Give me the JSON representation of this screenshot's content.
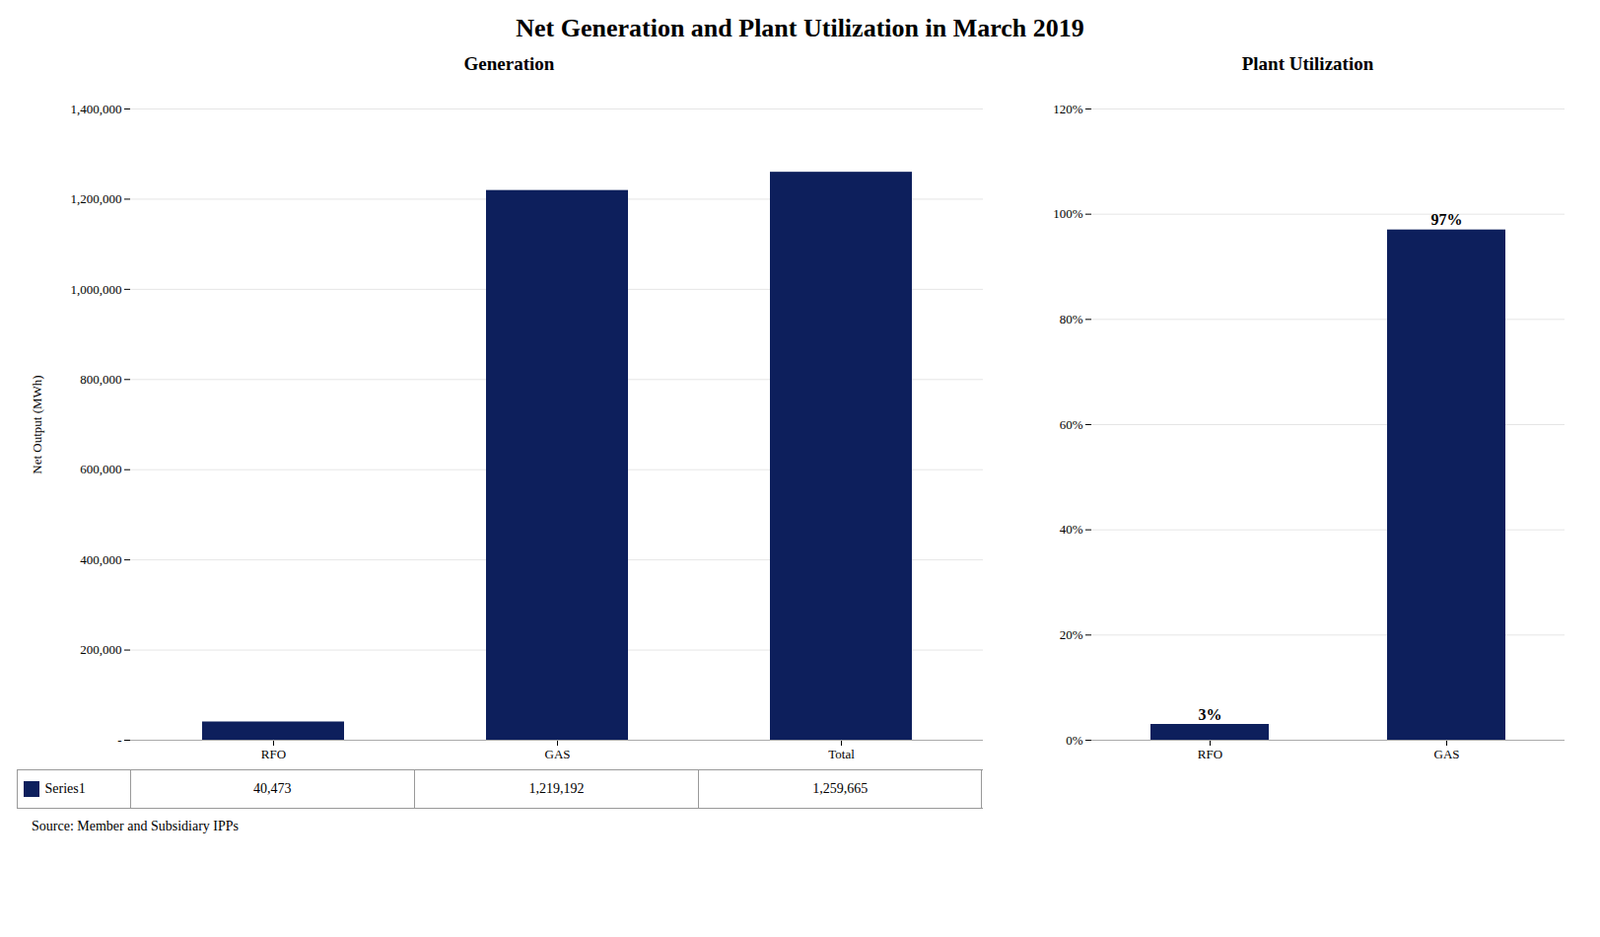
{
  "title": "Net Generation and Plant Utilization in March 2019",
  "annotations": [
    "Source: Member and Subsidiary IPPs"
  ],
  "chart_data": [
    {
      "type": "bar",
      "title": "Generation",
      "categories": [
        "RFO",
        "GAS",
        "Total"
      ],
      "series": [
        {
          "name": "Series1",
          "color": "#0D1F5C",
          "values": [
            40473,
            1219192,
            1259665
          ]
        }
      ],
      "value_labels": [
        "40,473",
        "1,219,192",
        "1,259,665"
      ],
      "data_labels": true,
      "legend": "lower left",
      "ylabel": "Net Output (MWh)",
      "ylim": [
        0,
        1400000
      ],
      "yticks": [
        {
          "value": 0,
          "label": "-"
        },
        {
          "value": 200000,
          "label": "200,000"
        },
        {
          "value": 400000,
          "label": "400,000"
        },
        {
          "value": 600000,
          "label": "600,000"
        },
        {
          "value": 800000,
          "label": "800,000"
        },
        {
          "value": 1000000,
          "label": "1,000,000"
        },
        {
          "value": 1200000,
          "label": "1,200,000"
        },
        {
          "value": 1400000,
          "label": "1,400,000"
        }
      ],
      "grid": true
    },
    {
      "type": "bar",
      "title": "Plant Utilization",
      "categories": [
        "RFO",
        "GAS"
      ],
      "values": [
        0.03,
        0.97
      ],
      "value_labels": [
        "3%",
        "97%"
      ],
      "data_labels": true,
      "color": "#0D1F5C",
      "ylim": [
        0,
        1.2
      ],
      "yticks": [
        {
          "value": 0,
          "label": "0%"
        },
        {
          "value": 0.2,
          "label": "20%"
        },
        {
          "value": 0.4,
          "label": "40%"
        },
        {
          "value": 0.6,
          "label": "60%"
        },
        {
          "value": 0.8,
          "label": "80%"
        },
        {
          "value": 1.0,
          "label": "100%"
        },
        {
          "value": 1.2,
          "label": "120%"
        }
      ],
      "grid": true
    }
  ]
}
